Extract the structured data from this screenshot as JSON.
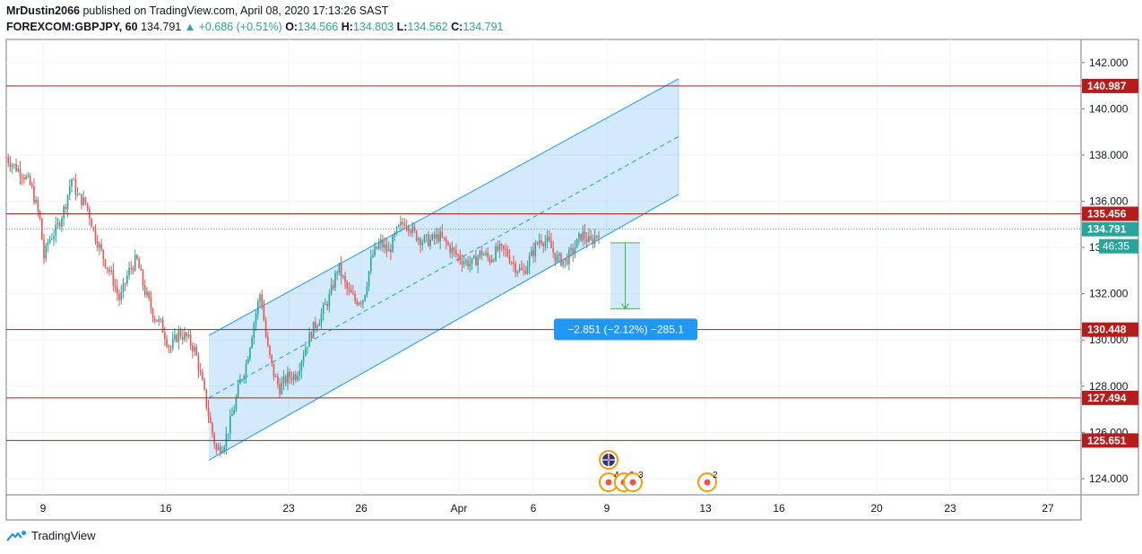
{
  "header": {
    "author": "MrDustin2066",
    "published_text": " published on TradingView.com, April 08, 2020 17:13:26 SAST",
    "symbol": "FOREXCOM:GBPJPY, 60",
    "last": "134.791",
    "change": "▲ +0.686 (+0.51%)",
    "o_label": "O:",
    "o_value": "134.566",
    "h_label": "H:",
    "h_value": "134.803",
    "l_label": "L:",
    "l_value": "134.562",
    "c_label": "C:",
    "c_value": "134.791"
  },
  "footer": {
    "brand": "TradingView"
  },
  "colors": {
    "up": "#26a69a",
    "down": "#ef5350",
    "level": "#b71c1c",
    "channel": "#2196f3",
    "channel_fill": "#2196f3",
    "measure": "#2196f3",
    "grid": "#f0f3fa",
    "axis_text": "#131722"
  },
  "chart_data": {
    "type": "candlestick",
    "symbol": "FOREXCOM:GBPJPY",
    "interval": "60",
    "ylim": [
      123.3,
      143.0
    ],
    "y_ticks": [
      "124.000",
      "126.000",
      "128.000",
      "130.000",
      "132.000",
      "134.000",
      "136.000",
      "138.000",
      "140.000",
      "142.000"
    ],
    "x_ticks": [
      "9",
      "16",
      "23",
      "26",
      "Apr",
      "6",
      "9",
      "13",
      "16",
      "20",
      "23",
      "27"
    ],
    "horizontal_levels": [
      "140.987",
      "135.456",
      "130.448",
      "127.494",
      "125.651"
    ],
    "last_price": "134.791",
    "countdown": "46:35",
    "channel": {
      "start_upper": 130.2,
      "start_lower": 124.8,
      "end_upper": 141.3,
      "end_lower": 136.3
    },
    "measure": {
      "from": 134.2,
      "to": 131.35,
      "label": "−2.851 (−2.12%) −285.1"
    },
    "events": [
      {
        "type": "flag",
        "label": ""
      },
      {
        "type": "group",
        "label": "4"
      },
      {
        "type": "group",
        "label": "3"
      },
      {
        "type": "group",
        "label": "3"
      },
      {
        "type": "group",
        "label": "2"
      }
    ],
    "price_path": [
      [
        0,
        137.9
      ],
      [
        4,
        137.5
      ],
      [
        8,
        137.2
      ],
      [
        12,
        136.6
      ],
      [
        16,
        135.2
      ],
      [
        18,
        133.5
      ],
      [
        20,
        134.3
      ],
      [
        24,
        134.8
      ],
      [
        28,
        135.8
      ],
      [
        31,
        137.0
      ],
      [
        34,
        136.2
      ],
      [
        38,
        135.9
      ],
      [
        42,
        134.6
      ],
      [
        46,
        133.6
      ],
      [
        50,
        132.8
      ],
      [
        54,
        131.7
      ],
      [
        58,
        132.9
      ],
      [
        62,
        133.5
      ],
      [
        66,
        132.1
      ],
      [
        70,
        131.1
      ],
      [
        74,
        130.6
      ],
      [
        78,
        129.6
      ],
      [
        82,
        130.3
      ],
      [
        86,
        130.1
      ],
      [
        90,
        129.5
      ],
      [
        94,
        127.8
      ],
      [
        97,
        126.4
      ],
      [
        100,
        125.2
      ],
      [
        104,
        125.6
      ],
      [
        108,
        126.9
      ],
      [
        111,
        128.1
      ],
      [
        114,
        128.9
      ],
      [
        118,
        130.8
      ],
      [
        121,
        132.1
      ],
      [
        124,
        129.8
      ],
      [
        127,
        128.6
      ],
      [
        130,
        127.9
      ],
      [
        134,
        128.4
      ],
      [
        138,
        128.5
      ],
      [
        142,
        129.6
      ],
      [
        146,
        130.5
      ],
      [
        150,
        131.1
      ],
      [
        154,
        131.9
      ],
      [
        158,
        133.2
      ],
      [
        162,
        132.2
      ],
      [
        166,
        131.7
      ],
      [
        170,
        131.8
      ],
      [
        174,
        133.6
      ],
      [
        178,
        134.2
      ],
      [
        182,
        133.8
      ],
      [
        186,
        134.7
      ],
      [
        190,
        135.2
      ],
      [
        194,
        134.6
      ],
      [
        198,
        134.3
      ],
      [
        202,
        134.3
      ],
      [
        206,
        134.5
      ],
      [
        210,
        134.1
      ],
      [
        214,
        133.7
      ],
      [
        218,
        133.4
      ],
      [
        222,
        133.3
      ],
      [
        226,
        133.8
      ],
      [
        230,
        133.5
      ],
      [
        234,
        133.9
      ],
      [
        238,
        133.8
      ],
      [
        242,
        133.2
      ],
      [
        246,
        132.9
      ],
      [
        250,
        133.7
      ],
      [
        254,
        134.4
      ],
      [
        258,
        134.2
      ],
      [
        262,
        133.5
      ],
      [
        266,
        133.4
      ],
      [
        270,
        133.9
      ],
      [
        274,
        134.6
      ],
      [
        278,
        134.2
      ],
      [
        282,
        134.7
      ]
    ],
    "price_path_domain": [
      0,
      282
    ]
  }
}
